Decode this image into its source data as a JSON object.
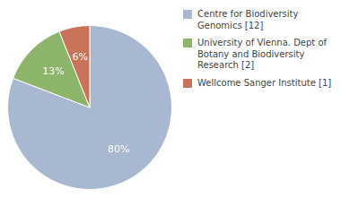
{
  "chart_data": {
    "type": "pie",
    "categories": [
      "Centre for Biodiversity\nGenomics [12]",
      "University of Vienna. Dept of\nBotany and Biodiversity\nResearch [2]",
      "Wellcome Sanger Institute [1]"
    ],
    "values": [
      80,
      13,
      6
    ],
    "value_labels": [
      "80%",
      "13%",
      "6%"
    ],
    "colors": [
      "#a8b8d0",
      "#8db56a",
      "#c8735a"
    ],
    "data_labels": true,
    "legend": "upper right"
  }
}
